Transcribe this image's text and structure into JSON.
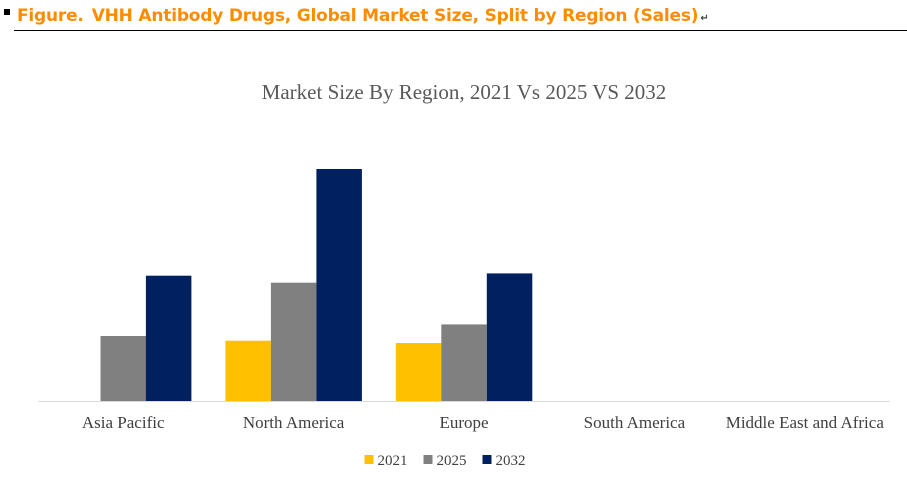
{
  "header": {
    "figure_label": "Figure.",
    "figure_title": "VHH Antibody Drugs, Global Market Size, Split by Region (Sales)",
    "return_mark": "↵",
    "accent_color": "#ff8c00",
    "rule_color": "#000000"
  },
  "chart_data": {
    "type": "bar",
    "title": "Market Size By Region, 2021 Vs 2025 VS 2032",
    "xlabel": "",
    "ylabel": "",
    "categories": [
      "Asia Pacific",
      "North America",
      "Europe",
      "South America",
      "Middle East and Africa"
    ],
    "series": [
      {
        "name": "2021",
        "color": "#ffc000",
        "values": [
          0,
          26,
          25,
          0,
          0
        ]
      },
      {
        "name": "2025",
        "color": "#808080",
        "values": [
          28,
          51,
          33,
          0,
          0
        ]
      },
      {
        "name": "2032",
        "color": "#002060",
        "values": [
          54,
          100,
          55,
          0,
          0
        ]
      }
    ],
    "ylim": [
      0,
      100
    ],
    "grid": false,
    "legend_position": "bottom-center"
  }
}
